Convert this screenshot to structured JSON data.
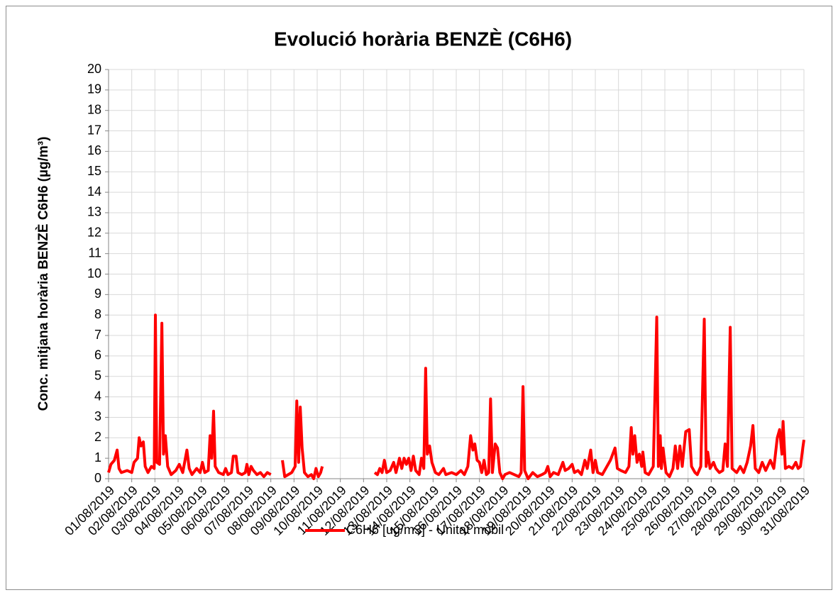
{
  "chart_data": {
    "type": "line",
    "title": "Evolució horària BENZÈ (C6H6)",
    "y_label": "Conc. mitjana horària BENZÈ C6H6 (µg/m³)",
    "grid": true,
    "legend": "bottom",
    "xlim": [
      0,
      30
    ],
    "ylim": [
      0,
      20
    ],
    "yticks": [
      0,
      1,
      2,
      3,
      4,
      5,
      6,
      7,
      8,
      9,
      10,
      11,
      12,
      13,
      14,
      15,
      16,
      17,
      18,
      19,
      20
    ],
    "xticks": [
      {
        "value": 0,
        "label": "01/08/2019"
      },
      {
        "value": 1,
        "label": "02/08/2019"
      },
      {
        "value": 2,
        "label": "03/08/2019"
      },
      {
        "value": 3,
        "label": "04/08/2019"
      },
      {
        "value": 4,
        "label": "05/08/2019"
      },
      {
        "value": 5,
        "label": "06/08/2019"
      },
      {
        "value": 6,
        "label": "07/08/2019"
      },
      {
        "value": 7,
        "label": "08/08/2019"
      },
      {
        "value": 8,
        "label": "09/08/2019"
      },
      {
        "value": 9,
        "label": "10/08/2019"
      },
      {
        "value": 10,
        "label": "11/08/2019"
      },
      {
        "value": 11,
        "label": "12/08/2019"
      },
      {
        "value": 12,
        "label": "13/08/2019"
      },
      {
        "value": 13,
        "label": "14/08/2019"
      },
      {
        "value": 14,
        "label": "15/08/2019"
      },
      {
        "value": 15,
        "label": "16/08/2019"
      },
      {
        "value": 16,
        "label": "17/08/2019"
      },
      {
        "value": 17,
        "label": "18/08/2019"
      },
      {
        "value": 18,
        "label": "19/08/2019"
      },
      {
        "value": 19,
        "label": "20/08/2019"
      },
      {
        "value": 20,
        "label": "21/08/2019"
      },
      {
        "value": 21,
        "label": "22/08/2019"
      },
      {
        "value": 22,
        "label": "23/08/2019"
      },
      {
        "value": 23,
        "label": "24/08/2019"
      },
      {
        "value": 24,
        "label": "25/08/2019"
      },
      {
        "value": 25,
        "label": "26/08/2019"
      },
      {
        "value": 26,
        "label": "27/08/2019"
      },
      {
        "value": 27,
        "label": "28/08/2019"
      },
      {
        "value": 28,
        "label": "29/08/2019"
      },
      {
        "value": 29,
        "label": "30/08/2019"
      },
      {
        "value": 30,
        "label": "31/08/2019"
      }
    ],
    "x": [
      0,
      0.1,
      0.25,
      0.37,
      0.45,
      0.55,
      0.8,
      1.0,
      1.1,
      1.25,
      1.32,
      1.4,
      1.5,
      1.58,
      1.7,
      1.85,
      1.97,
      2.02,
      2.08,
      2.2,
      2.3,
      2.37,
      2.45,
      2.55,
      2.7,
      2.9,
      3.05,
      3.2,
      3.38,
      3.48,
      3.6,
      3.8,
      3.95,
      4.05,
      4.15,
      4.3,
      4.38,
      4.45,
      4.53,
      4.6,
      4.75,
      4.95,
      5.05,
      5.15,
      5.3,
      5.38,
      5.5,
      5.58,
      5.75,
      5.9,
      5.97,
      6.05,
      6.15,
      6.25,
      6.4,
      6.55,
      6.7,
      6.85,
      7.0,
      7.25,
      7.5,
      7.6,
      7.75,
      7.9,
      8.05,
      8.12,
      8.2,
      8.27,
      8.35,
      8.45,
      8.6,
      8.75,
      8.85,
      8.95,
      9.05,
      9.15,
      9.22,
      10.35,
      11.48,
      11.6,
      11.7,
      11.8,
      11.9,
      12.0,
      12.15,
      12.3,
      12.4,
      12.55,
      12.65,
      12.75,
      12.85,
      12.95,
      13.05,
      13.15,
      13.25,
      13.4,
      13.5,
      13.6,
      13.68,
      13.75,
      13.85,
      13.95,
      14.1,
      14.25,
      14.45,
      14.55,
      14.8,
      15.0,
      15.2,
      15.35,
      15.5,
      15.62,
      15.72,
      15.8,
      15.9,
      16.0,
      16.1,
      16.2,
      16.3,
      16.4,
      16.48,
      16.56,
      16.68,
      16.78,
      16.88,
      17.0,
      17.1,
      17.3,
      17.5,
      17.7,
      17.8,
      17.88,
      17.95,
      18.1,
      18.3,
      18.5,
      18.7,
      18.85,
      18.95,
      19.05,
      19.2,
      19.4,
      19.6,
      19.7,
      19.85,
      20.0,
      20.1,
      20.25,
      20.4,
      20.55,
      20.65,
      20.8,
      20.9,
      21.0,
      21.1,
      21.3,
      21.5,
      21.65,
      21.85,
      21.95,
      22.1,
      22.3,
      22.45,
      22.55,
      22.62,
      22.7,
      22.8,
      22.9,
      23.0,
      23.05,
      23.15,
      23.3,
      23.5,
      23.65,
      23.72,
      23.8,
      23.85,
      23.92,
      24.05,
      24.2,
      24.35,
      24.45,
      24.55,
      24.65,
      24.75,
      24.9,
      25.05,
      25.15,
      25.3,
      25.4,
      25.55,
      25.7,
      25.78,
      25.85,
      25.95,
      26.1,
      26.2,
      26.35,
      26.5,
      26.6,
      26.7,
      26.82,
      26.9,
      27.0,
      27.1,
      27.25,
      27.4,
      27.55,
      27.7,
      27.8,
      27.9,
      28.05,
      28.2,
      28.35,
      28.55,
      28.7,
      28.85,
      28.95,
      29.05,
      29.1,
      29.2,
      29.35,
      29.5,
      29.65,
      29.75,
      29.85,
      29.95,
      30.0
    ],
    "series": [
      {
        "name": "C6H6 [ug/m3] - Unitat mòbil",
        "color": "#ff0000",
        "values": [
          0.3,
          0.7,
          0.9,
          1.4,
          0.5,
          0.3,
          0.4,
          0.3,
          0.8,
          1.0,
          2.0,
          1.6,
          1.8,
          0.6,
          0.3,
          0.6,
          0.5,
          8.0,
          0.8,
          0.7,
          7.6,
          1.2,
          2.1,
          0.6,
          0.2,
          0.4,
          0.7,
          0.3,
          1.4,
          0.5,
          0.2,
          0.5,
          0.3,
          0.8,
          0.3,
          0.4,
          2.1,
          1.0,
          3.3,
          0.6,
          0.3,
          0.2,
          0.5,
          0.2,
          0.3,
          1.1,
          1.1,
          0.3,
          0.2,
          0.3,
          0.7,
          0.2,
          0.6,
          0.4,
          0.2,
          0.3,
          0.1,
          0.3,
          0.2,
          null,
          0.9,
          0.1,
          0.2,
          0.3,
          0.6,
          3.8,
          0.8,
          3.5,
          1.5,
          0.3,
          0.1,
          0.2,
          0.0,
          0.5,
          0.1,
          0.3,
          0.6,
          null,
          0.3,
          0.2,
          0.5,
          0.3,
          0.9,
          0.3,
          0.4,
          0.8,
          0.3,
          1.0,
          0.5,
          1.0,
          0.7,
          1.0,
          0.4,
          1.1,
          0.4,
          0.2,
          1.0,
          0.5,
          5.4,
          1.2,
          1.6,
          0.8,
          0.3,
          0.2,
          0.5,
          0.2,
          0.3,
          0.2,
          0.4,
          0.2,
          0.6,
          2.1,
          1.4,
          1.7,
          0.9,
          0.8,
          0.3,
          0.9,
          0.2,
          0.3,
          3.9,
          0.3,
          1.7,
          1.5,
          0.3,
          0.0,
          0.2,
          0.3,
          0.2,
          0.1,
          0.3,
          4.5,
          0.4,
          0.0,
          0.3,
          0.1,
          0.2,
          0.3,
          0.6,
          0.1,
          0.3,
          0.2,
          0.8,
          0.4,
          0.5,
          0.7,
          0.3,
          0.4,
          0.2,
          0.9,
          0.5,
          1.4,
          0.3,
          0.9,
          0.3,
          0.2,
          0.6,
          0.9,
          1.5,
          0.5,
          0.4,
          0.3,
          0.6,
          2.5,
          1.2,
          2.1,
          0.8,
          1.2,
          0.6,
          1.3,
          0.3,
          0.2,
          0.6,
          7.9,
          0.6,
          2.1,
          0.5,
          1.5,
          0.3,
          0.1,
          0.5,
          1.6,
          0.5,
          1.6,
          0.6,
          2.3,
          2.4,
          0.6,
          0.3,
          0.2,
          0.6,
          7.8,
          0.6,
          1.3,
          0.5,
          0.8,
          0.5,
          0.3,
          0.4,
          1.7,
          0.6,
          7.4,
          0.5,
          0.4,
          0.3,
          0.6,
          0.3,
          0.8,
          1.6,
          2.6,
          0.5,
          0.3,
          0.8,
          0.4,
          0.9,
          0.5,
          2.0,
          2.4,
          1.2,
          2.8,
          0.5,
          0.6,
          0.5,
          0.8,
          0.5,
          0.6,
          1.5,
          1.9
        ]
      }
    ]
  }
}
